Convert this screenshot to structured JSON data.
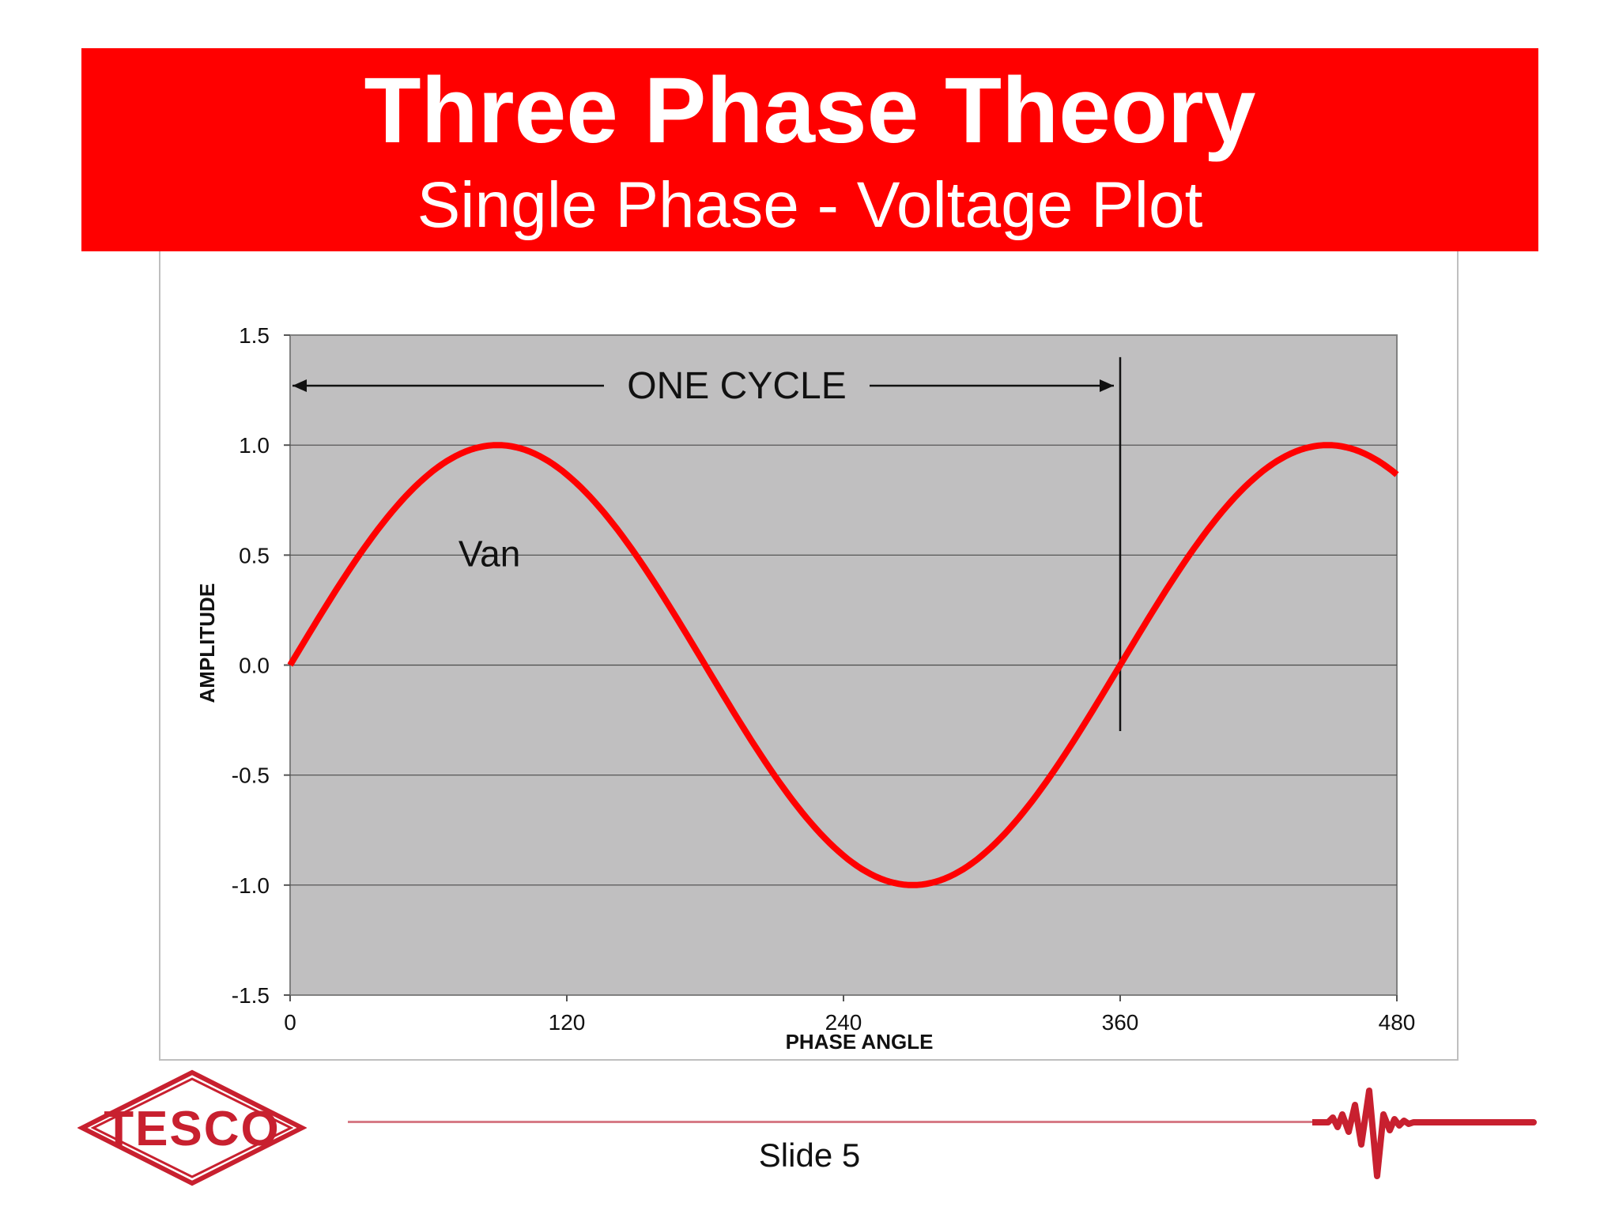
{
  "slide": {
    "title": "Three Phase Theory",
    "subtitle": "Single Phase - Voltage Plot",
    "slide_label": "Slide 5",
    "logo_text": "TESCO",
    "colors": {
      "banner": "#ff0000",
      "curve": "#ff0000",
      "plot_background": "#c0bfc0",
      "footer_line": "#d77b86",
      "logo": "#c8202f"
    }
  },
  "chart_data": {
    "type": "line",
    "title": "",
    "xlabel": "PHASE ANGLE",
    "ylabel": "AMPLITUDE",
    "xlim": [
      0,
      480
    ],
    "ylim": [
      -1.5,
      1.5
    ],
    "x_ticks": [
      "0",
      "120",
      "240",
      "360",
      "480"
    ],
    "y_ticks": [
      "1.5",
      "1.0",
      "0.5",
      "0.0",
      "-0.5",
      "-1.0",
      "-1.5"
    ],
    "grid": "horizontal",
    "series": [
      {
        "name": "Van",
        "function": "sin",
        "x": [
          0,
          30,
          60,
          90,
          120,
          150,
          180,
          210,
          240,
          270,
          300,
          330,
          360,
          390,
          420,
          450,
          480
        ],
        "y": [
          0.0,
          0.5,
          0.87,
          1.0,
          0.87,
          0.5,
          0.0,
          -0.5,
          -0.87,
          -1.0,
          -0.87,
          -0.5,
          0.0,
          0.5,
          0.87,
          1.0,
          0.87
        ]
      }
    ],
    "annotations": [
      {
        "text": "ONE CYCLE",
        "type": "double-arrow",
        "x_start": 0,
        "x_end": 360,
        "y": 1.27
      },
      {
        "type": "vertical-marker",
        "x": 360,
        "y_start": 1.4,
        "y_end": -0.3
      }
    ]
  }
}
